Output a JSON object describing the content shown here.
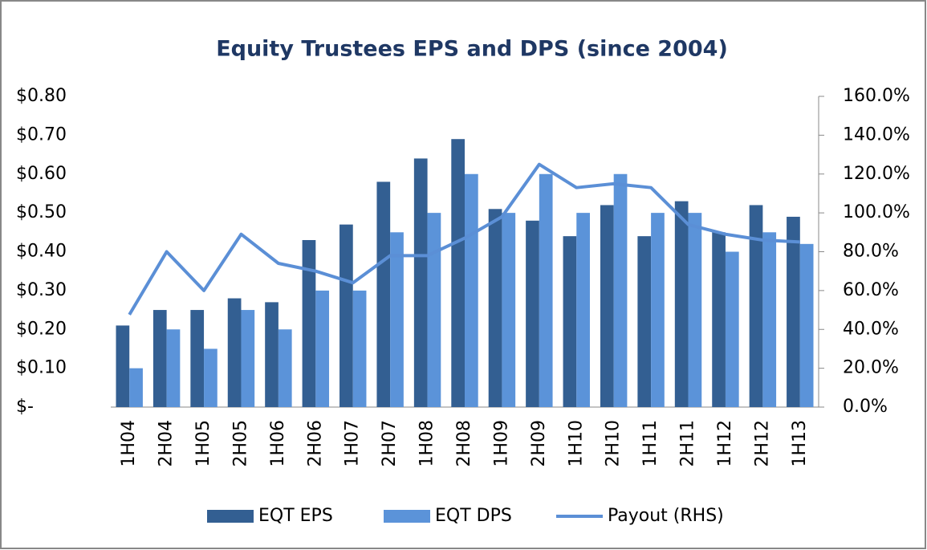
{
  "chart_data": {
    "type": "bar-line",
    "title": "Equity Trustees EPS and DPS (since 2004)",
    "categories": [
      "1H04",
      "2H04",
      "1H05",
      "2H05",
      "1H06",
      "2H06",
      "1H07",
      "2H07",
      "1H08",
      "2H08",
      "1H09",
      "2H09",
      "1H10",
      "2H10",
      "1H11",
      "2H11",
      "1H12",
      "2H12",
      "1H13"
    ],
    "series": [
      {
        "name": "EQT EPS",
        "type": "bar",
        "color": "#335f92",
        "values": [
          0.21,
          0.25,
          0.25,
          0.28,
          0.27,
          0.43,
          0.47,
          0.58,
          0.64,
          0.69,
          0.51,
          0.48,
          0.44,
          0.52,
          0.44,
          0.53,
          0.45,
          0.52,
          0.49
        ]
      },
      {
        "name": "EQT DPS",
        "type": "bar",
        "color": "#5b93d9",
        "values": [
          0.1,
          0.2,
          0.15,
          0.25,
          0.2,
          0.3,
          0.3,
          0.45,
          0.5,
          0.6,
          0.5,
          0.6,
          0.5,
          0.6,
          0.5,
          0.5,
          0.4,
          0.45,
          0.42
        ]
      },
      {
        "name": "Payout (RHS)",
        "type": "line",
        "axis": "y2",
        "color": "#5b8fd6",
        "values": [
          47.6,
          80,
          60,
          89,
          74,
          70,
          64,
          78,
          78,
          87,
          98,
          125,
          113,
          115,
          113,
          94,
          89,
          86,
          85
        ]
      }
    ],
    "ylim": [
      0,
      0.8
    ],
    "yticks": [
      {
        "value": 0,
        "label": "$-"
      },
      {
        "value": 0.1,
        "label": "$0.10"
      },
      {
        "value": 0.2,
        "label": "$0.20"
      },
      {
        "value": 0.3,
        "label": "$0.30"
      },
      {
        "value": 0.4,
        "label": "$0.40"
      },
      {
        "value": 0.5,
        "label": "$0.50"
      },
      {
        "value": 0.6,
        "label": "$0.60"
      },
      {
        "value": 0.7,
        "label": "$0.70"
      },
      {
        "value": 0.8,
        "label": "$0.80"
      }
    ],
    "y2lim": [
      0,
      160
    ],
    "y2ticks": [
      {
        "value": 0,
        "label": "0.0%"
      },
      {
        "value": 20,
        "label": "20.0%"
      },
      {
        "value": 40,
        "label": "40.0%"
      },
      {
        "value": 60,
        "label": "60.0%"
      },
      {
        "value": 80,
        "label": "80.0%"
      },
      {
        "value": 100,
        "label": "100.0%"
      },
      {
        "value": 120,
        "label": "120.0%"
      },
      {
        "value": 140,
        "label": "140.0%"
      },
      {
        "value": 160,
        "label": "160.0%"
      }
    ],
    "legend": "bottom"
  }
}
